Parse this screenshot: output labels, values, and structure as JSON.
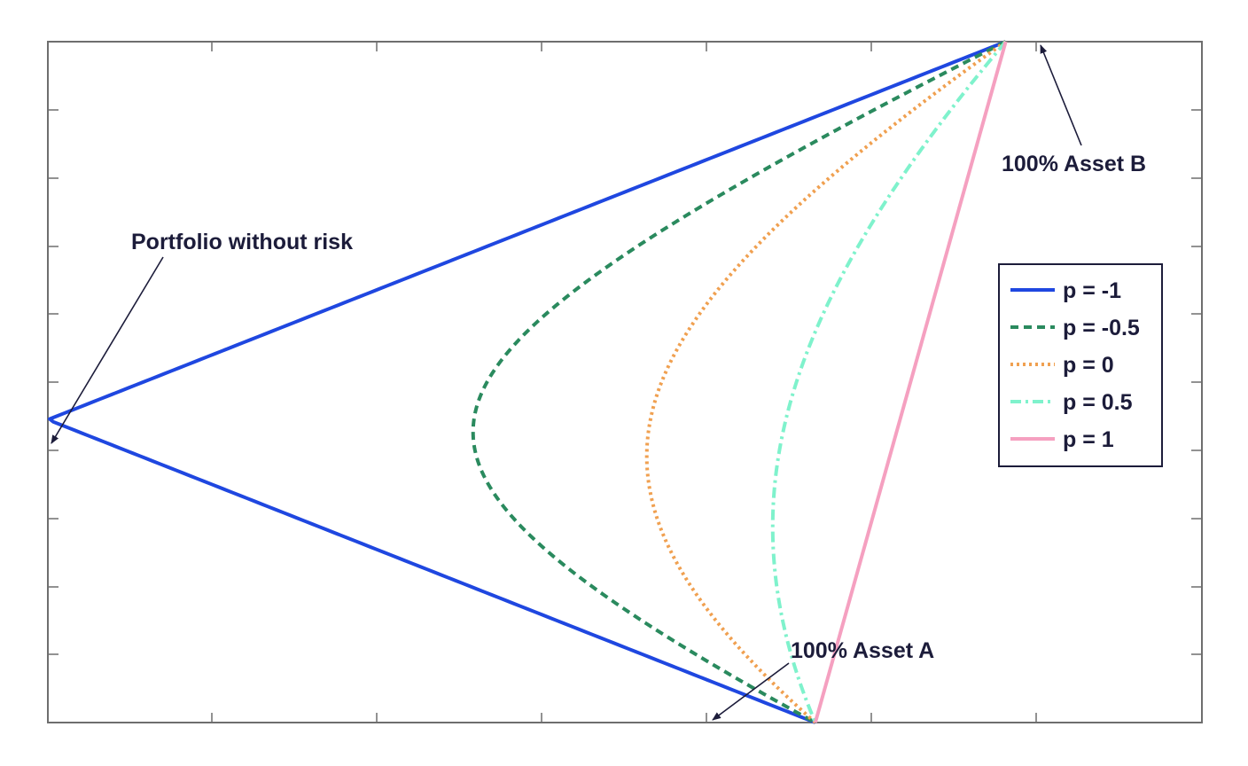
{
  "chart_data": {
    "type": "line",
    "title": "",
    "xlabel": "",
    "ylabel": "",
    "xlim": [
      0,
      1
    ],
    "ylim": [
      0,
      1
    ],
    "grid": false,
    "legend_position": "right",
    "assets": {
      "A": {
        "risk": 0.665,
        "return": 0.0
      },
      "B": {
        "risk": 0.83,
        "return": 1.0
      }
    },
    "series": [
      {
        "name": "p = -1",
        "rho": -1,
        "color": "#1f47e0",
        "dash": "solid"
      },
      {
        "name": "p = -0.5",
        "rho": -0.5,
        "color": "#2a8a5e",
        "dash": "dashed"
      },
      {
        "name": "p = 0",
        "rho": 0,
        "color": "#f0a050",
        "dash": "dotted"
      },
      {
        "name": "p = 0.5",
        "rho": 0.5,
        "color": "#7ff2cc",
        "dash": "dashdot"
      },
      {
        "name": "p = 1",
        "rho": 1,
        "color": "#f5a0c0",
        "dash": "solid"
      }
    ],
    "annotations": [
      {
        "text": "Portfolio without risk",
        "target": "zero_risk"
      },
      {
        "text": "100% Asset B",
        "target": "B"
      },
      {
        "text": "100% Asset A",
        "target": "A"
      }
    ]
  }
}
